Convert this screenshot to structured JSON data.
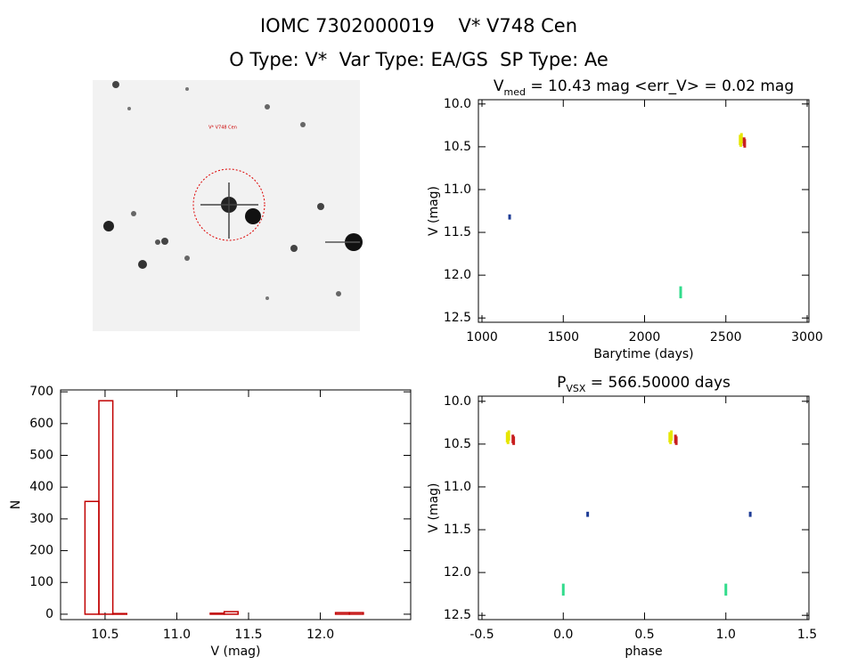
{
  "figure": {
    "title": "IOMC 7302000019    V* V748 Cen",
    "subtitle": "O Type: V*  Var Type: EA/GS  SP Type: Ae"
  },
  "image": {
    "label": "V* V748 Cen"
  },
  "chart_data": [
    {
      "type": "errorscatter",
      "title_parts": [
        "V",
        "med",
        " = 10.43 mag <err_V> = 0.02 mag"
      ],
      "xlabel": "Barytime (days)",
      "ylabel": "V (mag)",
      "xlim": [
        978,
        3011
      ],
      "ylim": [
        12.55,
        9.95
      ],
      "xticks": [
        1000,
        1500,
        2000,
        2500,
        3000
      ],
      "yticks": [
        {
          "value": 10,
          "label": "10.0"
        },
        10.5,
        {
          "value": 11,
          "label": "11.0"
        },
        11.5,
        {
          "value": 12,
          "label": "12.0"
        },
        12.5
      ],
      "series": [
        {
          "color": "#e6e600",
          "x": [
            2588,
            2592,
            2596
          ],
          "values": [
            10.42,
            10.44,
            10.4
          ],
          "errors": [
            0.06,
            0.06,
            0.06
          ]
        },
        {
          "color": "#c81e1e",
          "x": [
            2612,
            2616
          ],
          "values": [
            10.44,
            10.46
          ],
          "errors": [
            0.05,
            0.05
          ]
        },
        {
          "color": "#1e3c96",
          "x": [
            1170
          ],
          "values": [
            11.32
          ],
          "errors": [
            0.03
          ]
        },
        {
          "color": "#32dc8c",
          "x": [
            2222
          ],
          "values": [
            12.2
          ],
          "errors": [
            0.07
          ]
        }
      ]
    },
    {
      "type": "histogram",
      "xlabel": "V (mag)",
      "ylabel": "N",
      "color": "#c00000",
      "xlim": [
        10.19,
        12.63
      ],
      "ylim": [
        -17,
        706
      ],
      "xticks": [
        10.5,
        {
          "value": 11,
          "label": "11.0"
        },
        11.5,
        {
          "value": 12,
          "label": "12.0"
        }
      ],
      "yticks": [
        0,
        100,
        200,
        300,
        400,
        500,
        600,
        700
      ],
      "bins": [
        10.36,
        10.457,
        10.554,
        10.651,
        10.748,
        10.845,
        10.942,
        11.039,
        11.136,
        11.233,
        11.33,
        11.427,
        11.524,
        11.621,
        11.718,
        11.815,
        11.912,
        12.009,
        12.106,
        12.203,
        12.3
      ],
      "counts": [
        355,
        672,
        2,
        0,
        0,
        0,
        0,
        0,
        0,
        3,
        8,
        0,
        0,
        0,
        0,
        0,
        0,
        0,
        5,
        5
      ]
    },
    {
      "type": "errorscatter",
      "title_parts": [
        "P",
        "VSX",
        " = 566.50000 days"
      ],
      "xlabel": "phase",
      "ylabel": "V (mag)",
      "xlim": [
        -0.522,
        1.511
      ],
      "ylim": [
        12.55,
        9.94
      ],
      "xticks": [
        -0.5,
        {
          "value": 0,
          "label": "0.0"
        },
        0.5,
        {
          "value": 1,
          "label": "1.0"
        },
        1.5
      ],
      "yticks": [
        {
          "value": 10,
          "label": "10.0"
        },
        10.5,
        {
          "value": 11,
          "label": "11.0"
        },
        11.5,
        {
          "value": 12,
          "label": "12.0"
        },
        12.5
      ],
      "series": [
        {
          "color": "#e6e600",
          "x": [
            -0.345,
            -0.34,
            -0.335,
            0.655,
            0.66,
            0.665
          ],
          "values": [
            10.42,
            10.44,
            10.4,
            10.42,
            10.44,
            10.4
          ],
          "errors": [
            0.06,
            0.06,
            0.06,
            0.06,
            0.06,
            0.06
          ]
        },
        {
          "color": "#c81e1e",
          "x": [
            -0.31,
            -0.305,
            0.69,
            0.695
          ],
          "values": [
            10.44,
            10.46,
            10.44,
            10.46
          ],
          "errors": [
            0.05,
            0.05,
            0.05,
            0.05
          ]
        },
        {
          "color": "#1e3c96",
          "x": [
            0.15,
            1.15
          ],
          "values": [
            11.32,
            11.32
          ],
          "errors": [
            0.03,
            0.03
          ]
        },
        {
          "color": "#32dc8c",
          "x": [
            0,
            1
          ],
          "values": [
            12.2,
            12.2
          ],
          "errors": [
            0.07,
            0.07
          ]
        }
      ]
    }
  ]
}
